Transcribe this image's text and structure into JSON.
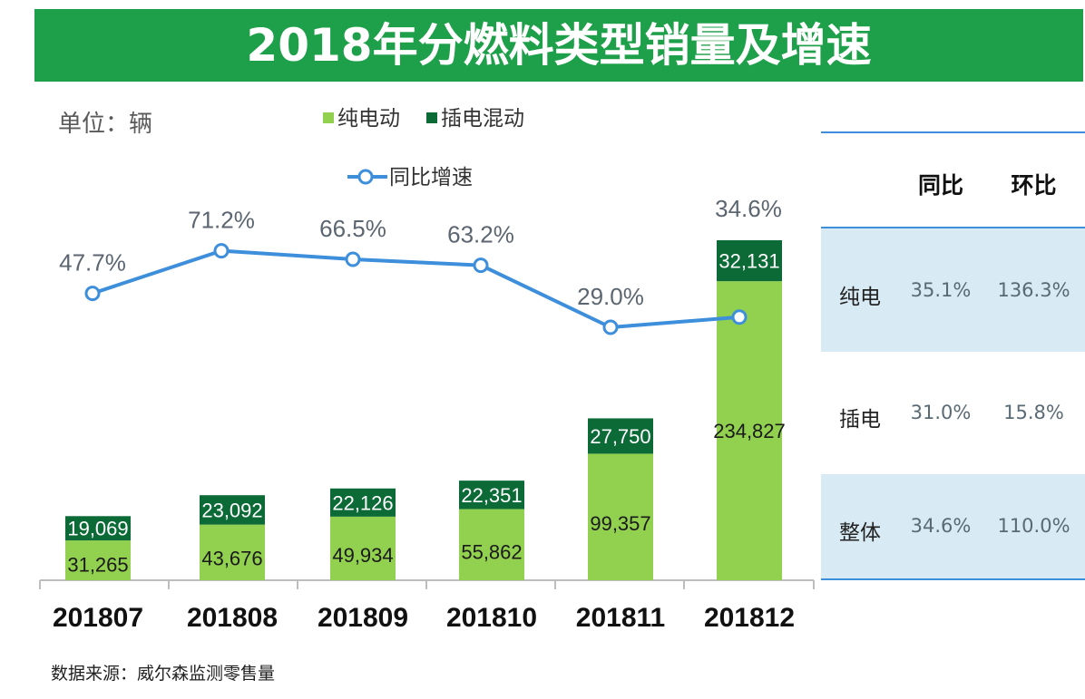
{
  "header": {
    "title": "2018年分燃料类型销量及增速"
  },
  "unit_label": "单位：辆",
  "legend": {
    "bev": "纯电动",
    "phev": "插电混动",
    "yoy": "同比增速"
  },
  "colors": {
    "title_bg": "#1ea04a",
    "bev": "#92d050",
    "phev": "#0b6a36",
    "yoy_line": "#3d8edb",
    "table_band": "#d8eaf4",
    "table_rule": "#3d8edb"
  },
  "chart_data": {
    "type": "bar",
    "stacked": true,
    "categories": [
      "201807",
      "201808",
      "201809",
      "201810",
      "201811",
      "201812"
    ],
    "series": [
      {
        "name": "纯电动",
        "values": [
          31265,
          43676,
          49934,
          55862,
          99357,
          234827
        ],
        "labels": [
          "31,265",
          "43,676",
          "49,934",
          "55,862",
          "99,357",
          "234,827"
        ]
      },
      {
        "name": "插电混动",
        "values": [
          19069,
          23092,
          22126,
          22351,
          27750,
          32131
        ],
        "labels": [
          "19,069",
          "23,092",
          "22,126",
          "22,351",
          "27,750",
          "32,131"
        ]
      }
    ],
    "line_series": {
      "name": "同比增速",
      "values": [
        47.7,
        71.2,
        66.5,
        63.2,
        29.0,
        34.6
      ],
      "labels": [
        "47.7%",
        "71.2%",
        "66.5%",
        "63.2%",
        "29.0%",
        "34.6%"
      ]
    },
    "grid": false
  },
  "summary_table": {
    "headers": [
      "",
      "同比",
      "环比"
    ],
    "rows": [
      {
        "label": "纯电",
        "yoy": "35.1%",
        "mom": "136.3%"
      },
      {
        "label": "插电",
        "yoy": "31.0%",
        "mom": "15.8%"
      },
      {
        "label": "整体",
        "yoy": "34.6%",
        "mom": "110.0%"
      }
    ]
  },
  "source": "数据来源：威尔森监测零售量"
}
